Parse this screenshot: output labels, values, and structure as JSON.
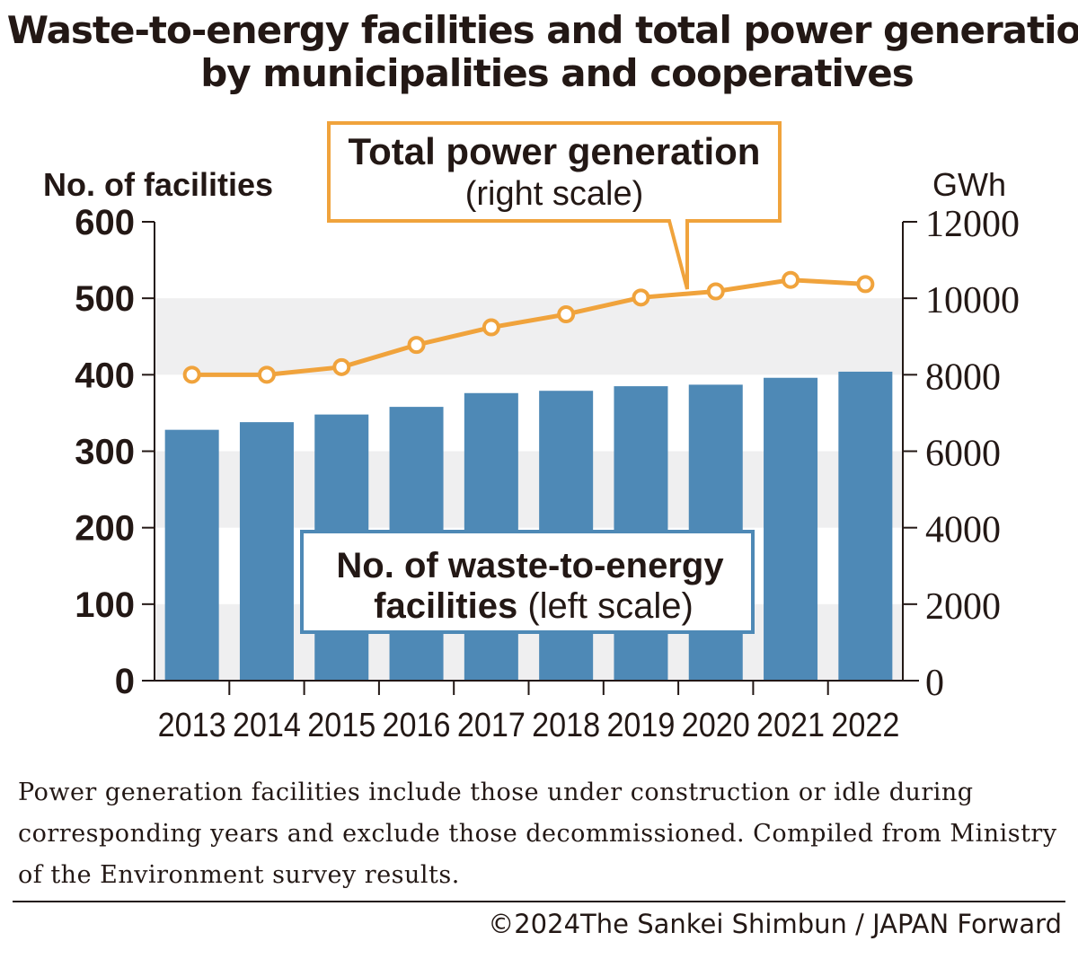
{
  "chart_data": {
    "type": "bar+line",
    "title": "Waste-to-energy facilities and total power generation by municipalities and cooperatives",
    "categories": [
      "2013",
      "2014",
      "2015",
      "2016",
      "2017",
      "2018",
      "2019",
      "2020",
      "2021",
      "2022"
    ],
    "series": [
      {
        "name": "No. of waste-to-energy facilities (left scale)",
        "name_bold": "No. of waste-to-energy facilities",
        "name_rest": "(left scale)",
        "type": "bar",
        "axis": "left",
        "color": "#4e89b6",
        "values": [
          328,
          338,
          348,
          358,
          376,
          379,
          385,
          387,
          396,
          404
        ]
      },
      {
        "name": "Total power generation (right scale)",
        "name_bold": "Total power generation",
        "name_rest": "(right scale)",
        "type": "line",
        "axis": "right",
        "color": "#f0a33c",
        "values": [
          8000,
          8000,
          8200,
          8780,
          9240,
          9580,
          10020,
          10180,
          10480,
          10370
        ]
      }
    ],
    "ylabel_left": "No. of facilities",
    "ylabel_right": "GWh",
    "ylim_left": [
      0,
      600
    ],
    "ylim_right": [
      0,
      12000
    ],
    "yticks_left": [
      "0",
      "100",
      "200",
      "300",
      "400",
      "500",
      "600"
    ],
    "yticks_right": [
      "0",
      "2000",
      "4000",
      "6000",
      "8000",
      "10000",
      "12000"
    ],
    "grid": "alternating horizontal bands",
    "legend": "callout labels"
  },
  "note": "Power generation facilities include those under construction or idle during corresponding years and exclude those decommissioned. Compiled from Ministry of the Environment survey results.",
  "credit": "©2024The Sankei Shimbun / JAPAN Forward"
}
